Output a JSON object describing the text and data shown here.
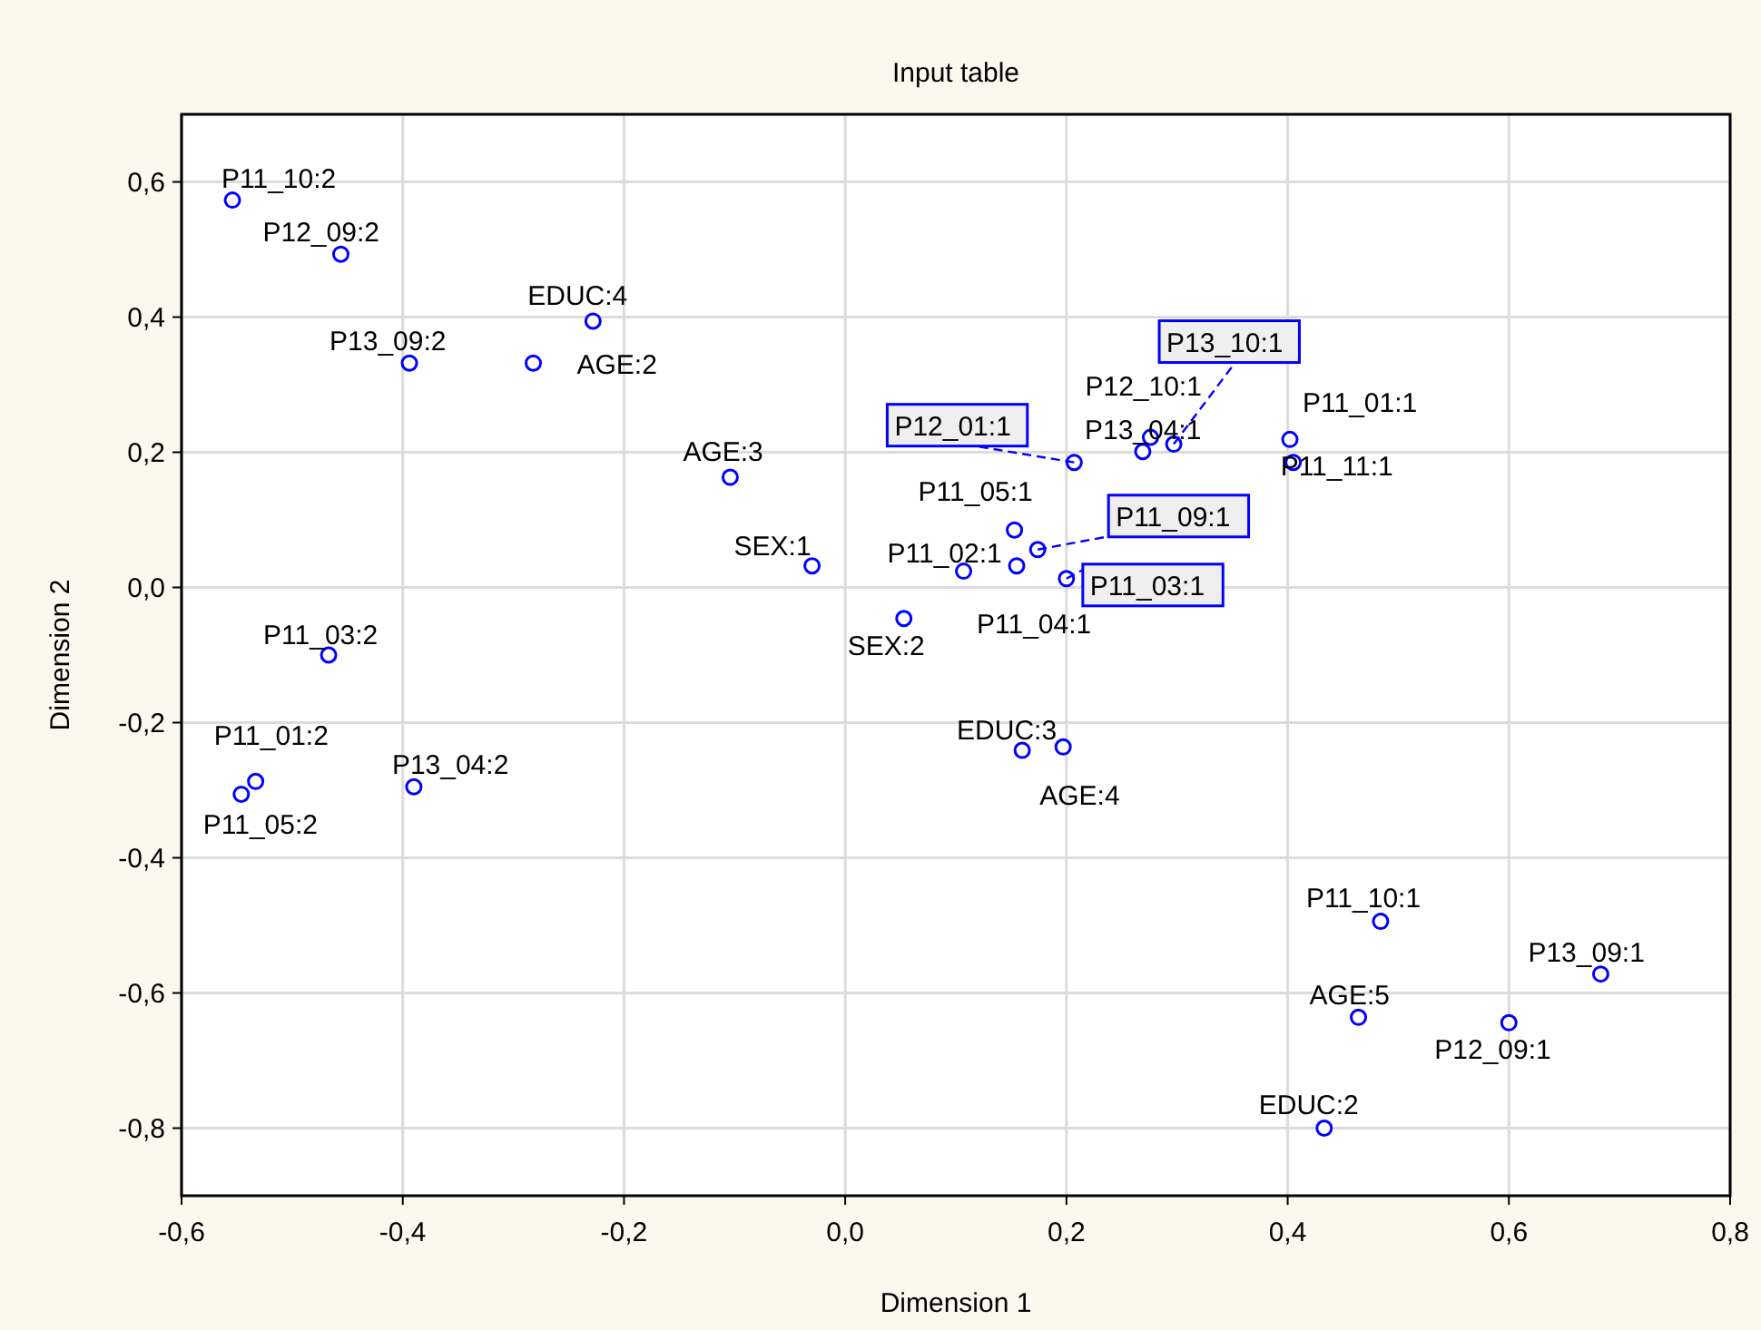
{
  "chart_data": {
    "type": "scatter",
    "title": "Input table",
    "xlabel": "Dimension 1",
    "ylabel": "Dimension 2",
    "xlim": [
      -0.6,
      0.8
    ],
    "ylim": [
      -0.9,
      0.7
    ],
    "xticks": [
      {
        "value": -0.6,
        "label": "-0,6"
      },
      {
        "value": -0.4,
        "label": "-0,4"
      },
      {
        "value": -0.2,
        "label": "-0,2"
      },
      {
        "value": 0,
        "label": "0,0"
      },
      {
        "value": 0.2,
        "label": "0,2"
      },
      {
        "value": 0.4,
        "label": "0,4"
      },
      {
        "value": 0.6,
        "label": "0,6"
      },
      {
        "value": 0.8,
        "label": "0,8"
      }
    ],
    "yticks": [
      {
        "value": -0.8,
        "label": "-0,8"
      },
      {
        "value": -0.6,
        "label": "-0,6"
      },
      {
        "value": -0.4,
        "label": "-0,4"
      },
      {
        "value": -0.2,
        "label": "-0,2"
      },
      {
        "value": 0,
        "label": "0,0"
      },
      {
        "value": 0.2,
        "label": "0,2"
      },
      {
        "value": 0.4,
        "label": "0,4"
      },
      {
        "value": 0.6,
        "label": "0,6"
      }
    ],
    "grid": true,
    "marker": "circle",
    "series": [
      {
        "color": "#0000ff",
        "x": [
          -0.554,
          -0.456,
          -0.394,
          -0.282,
          -0.228,
          -0.104,
          -0.03,
          0.053,
          -0.467,
          -0.533,
          -0.546,
          -0.39,
          0.16,
          0.197,
          0.107,
          0.153,
          0.174,
          0.155,
          0.2,
          0.207,
          0.269,
          0.276,
          0.297,
          0.402,
          0.405,
          0.484,
          0.464,
          0.6,
          0.683,
          0.433
        ],
        "values": [
          0.573,
          0.493,
          0.332,
          0.332,
          0.394,
          0.163,
          0.032,
          -0.046,
          -0.1,
          -0.287,
          -0.306,
          -0.295,
          -0.241,
          -0.236,
          0.024,
          0.085,
          0.056,
          0.032,
          0.013,
          0.185,
          0.201,
          0.222,
          0.212,
          0.219,
          0.185,
          -0.494,
          -0.636,
          -0.644,
          -0.572,
          -0.8
        ]
      }
    ],
    "annotations": [
      {
        "text": "P11_10:2",
        "x": -0.554,
        "y": 0.573
      },
      {
        "text": "P12_09:2",
        "x": -0.456,
        "y": 0.493
      },
      {
        "text": "P13_09:2",
        "x": -0.394,
        "y": 0.332
      },
      {
        "text": "AGE:2",
        "x": -0.282,
        "y": 0.332
      },
      {
        "text": "EDUC:4",
        "x": -0.228,
        "y": 0.394
      },
      {
        "text": "AGE:3",
        "x": -0.104,
        "y": 0.163
      },
      {
        "text": "SEX:1",
        "x": -0.03,
        "y": 0.032
      },
      {
        "text": "SEX:2",
        "x": 0.053,
        "y": -0.046
      },
      {
        "text": "P11_03:2",
        "x": -0.467,
        "y": -0.1
      },
      {
        "text": "P11_01:2",
        "x": -0.533,
        "y": -0.287
      },
      {
        "text": "P11_05:2",
        "x": -0.546,
        "y": -0.306
      },
      {
        "text": "P13_04:2",
        "x": -0.39,
        "y": -0.295
      },
      {
        "text": "EDUC:3",
        "x": 0.16,
        "y": -0.241
      },
      {
        "text": "AGE:4",
        "x": 0.197,
        "y": -0.236
      },
      {
        "text": "P11_02:1",
        "x": 0.107,
        "y": 0.024
      },
      {
        "text": "P11_05:1",
        "x": 0.153,
        "y": 0.085
      },
      {
        "text": "P11_09:1",
        "x": 0.174,
        "y": 0.056
      },
      {
        "text": "P11_04:1",
        "x": 0.155,
        "y": 0.032
      },
      {
        "text": "P11_03:1",
        "x": 0.2,
        "y": 0.013
      },
      {
        "text": "P12_01:1",
        "x": 0.207,
        "y": 0.185
      },
      {
        "text": "P13_04:1",
        "x": 0.269,
        "y": 0.201
      },
      {
        "text": "P12_10:1",
        "x": 0.276,
        "y": 0.222
      },
      {
        "text": "P13_10:1",
        "x": 0.297,
        "y": 0.212
      },
      {
        "text": "P11_01:1",
        "x": 0.402,
        "y": 0.219
      },
      {
        "text": "P11_11:1",
        "x": 0.405,
        "y": 0.185
      },
      {
        "text": "P11_10:1",
        "x": 0.484,
        "y": -0.494
      },
      {
        "text": "AGE:5",
        "x": 0.464,
        "y": -0.636
      },
      {
        "text": "P12_09:1",
        "x": 0.6,
        "y": -0.644
      },
      {
        "text": "P13_09:1",
        "x": 0.683,
        "y": -0.572
      },
      {
        "text": "EDUC:2",
        "x": 0.433,
        "y": -0.8
      }
    ]
  }
}
